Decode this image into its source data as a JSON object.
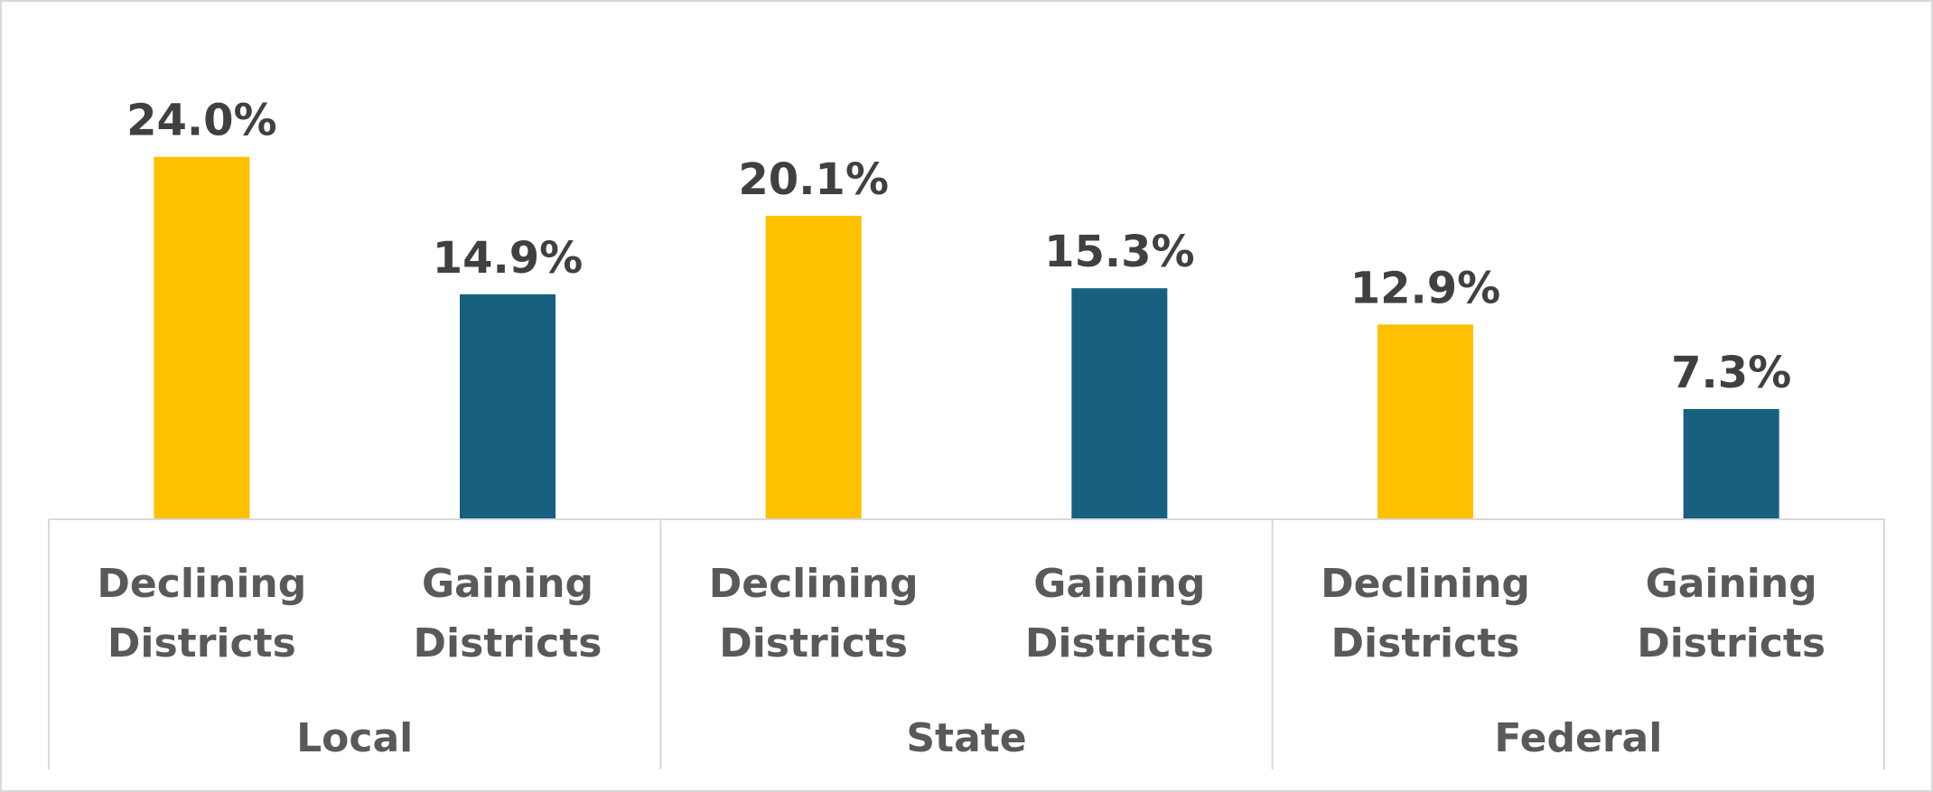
{
  "chart_data": {
    "type": "bar",
    "title": "",
    "xlabel": "",
    "ylabel": "",
    "ylim": [
      0,
      25
    ],
    "grid": false,
    "legend": "none",
    "value_format": "percent_one_decimal",
    "groups": [
      "Local",
      "State",
      "Federal"
    ],
    "subcategories": [
      [
        "Declining",
        "Districts"
      ],
      [
        "Gaining",
        "Districts"
      ]
    ],
    "values": [
      [
        24.0,
        14.9
      ],
      [
        20.1,
        15.3
      ],
      [
        12.9,
        7.3
      ]
    ],
    "data_labels": [
      [
        "24.0%",
        "14.9%"
      ],
      [
        "20.1%",
        "15.3%"
      ],
      [
        "12.9%",
        "7.3%"
      ]
    ],
    "colors": [
      "#FFC000",
      "#17607F"
    ]
  }
}
